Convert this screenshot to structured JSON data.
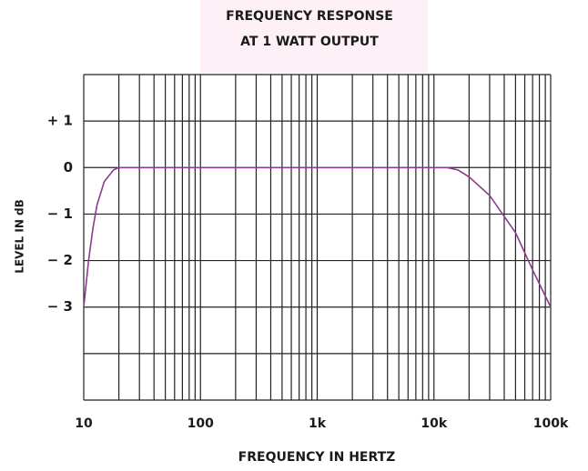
{
  "chart_data": {
    "type": "line",
    "title": [
      "FREQUENCY RESPONSE",
      "AT 1 WATT OUTPUT"
    ],
    "x_label": "FREQUENCY IN HERTZ",
    "y_label": "LEVEL IN dB",
    "x_scale": "log",
    "xlim": [
      10,
      100000
    ],
    "xticks": [
      10,
      100,
      {
        "value": 1000,
        "label": "1k"
      },
      {
        "value": 10000,
        "label": "10k"
      },
      {
        "value": 100000,
        "label": "100k"
      }
    ],
    "ylim": [
      -5,
      2
    ],
    "yticks": [
      {
        "value": 1,
        "label": "+ 1"
      },
      0,
      {
        "value": -1,
        "label": "− 1"
      },
      {
        "value": -2,
        "label": "− 2"
      },
      {
        "value": -3,
        "label": "− 3"
      }
    ],
    "grid": true,
    "series": [
      {
        "color": "#8e3a8e",
        "x": [
          10,
          11,
          12,
          13,
          15,
          18,
          20,
          25,
          100,
          1000,
          10000,
          13000,
          16000,
          20000,
          30000,
          50000,
          70000,
          100000
        ],
        "values": [
          -3,
          -2,
          -1.3,
          -0.8,
          -0.3,
          -0.05,
          0,
          0,
          0,
          0,
          0,
          0,
          -0.05,
          -0.2,
          -0.6,
          -1.4,
          -2.2,
          -3
        ]
      }
    ]
  }
}
